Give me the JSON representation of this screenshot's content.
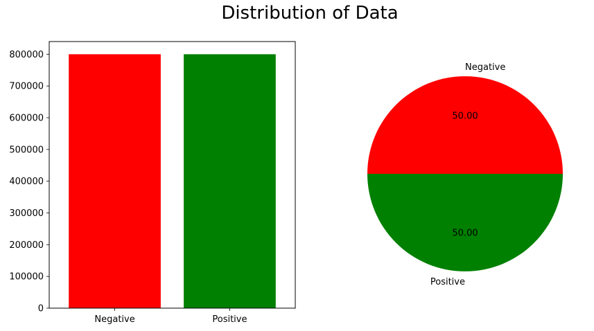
{
  "title": "Distribution of Data",
  "chart_data": [
    {
      "type": "bar",
      "categories": [
        "Negative",
        "Positive"
      ],
      "values": [
        800000,
        800000
      ],
      "colors": [
        "#ff0000",
        "#008000"
      ],
      "ylim": [
        0,
        840000
      ],
      "yticks": [
        0,
        100000,
        200000,
        300000,
        400000,
        500000,
        600000,
        700000,
        800000
      ],
      "grid": false
    },
    {
      "type": "pie",
      "labels": [
        "Negative",
        "Positive"
      ],
      "values": [
        50.0,
        50.0
      ],
      "value_labels": [
        "50.00",
        "50.00"
      ],
      "colors": [
        "#ff0000",
        "#008000"
      ]
    }
  ]
}
